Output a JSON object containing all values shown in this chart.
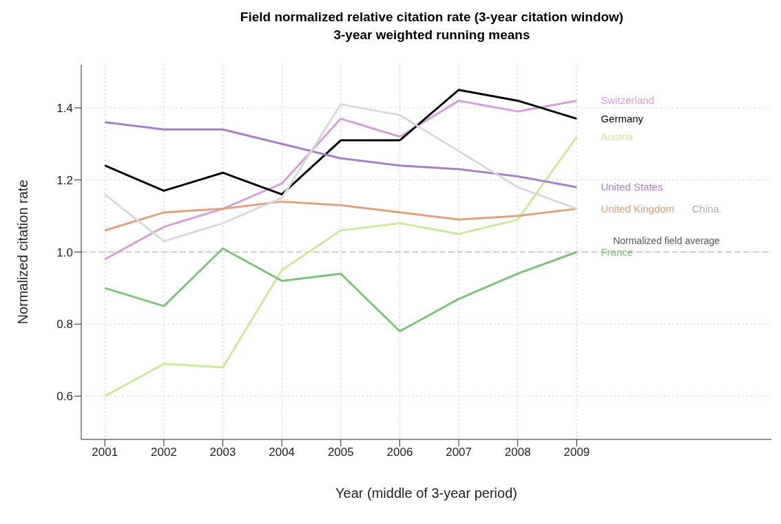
{
  "chart_data": {
    "type": "line",
    "title": "Field normalized relative citation rate (3-year citation window)",
    "subtitle": "3-year weighted running means",
    "xlabel": "Year (middle of 3-year period)",
    "ylabel": "Normalized citation rate",
    "x": [
      2001,
      2002,
      2003,
      2004,
      2005,
      2006,
      2007,
      2008,
      2009
    ],
    "series": [
      {
        "name": "Switzerland",
        "color": "#d4a0d8",
        "values": [
          0.98,
          1.07,
          1.12,
          1.19,
          1.37,
          1.32,
          1.42,
          1.39,
          1.42
        ]
      },
      {
        "name": "Germany",
        "color": "#000000",
        "values": [
          1.24,
          1.17,
          1.22,
          1.16,
          1.31,
          1.31,
          1.45,
          1.42,
          1.37
        ]
      },
      {
        "name": "Austria",
        "color": "#cde99a",
        "values": [
          0.6,
          0.69,
          0.68,
          0.95,
          1.06,
          1.08,
          1.05,
          1.09,
          1.32
        ]
      },
      {
        "name": "United States",
        "color": "#a57fc7",
        "values": [
          1.36,
          1.34,
          1.34,
          1.3,
          1.26,
          1.24,
          1.23,
          1.21,
          1.18
        ]
      },
      {
        "name": "United Kingdom",
        "color": "#e3a07a",
        "values": [
          1.06,
          1.11,
          1.12,
          1.14,
          1.13,
          1.11,
          1.09,
          1.1,
          1.12
        ]
      },
      {
        "name": "China",
        "color": "#d9d9d9",
        "values": [
          1.16,
          1.03,
          1.08,
          1.15,
          1.41,
          1.38,
          1.28,
          1.18,
          1.12
        ]
      },
      {
        "name": "France",
        "color": "#7cc47c",
        "values": [
          0.9,
          0.85,
          1.01,
          0.92,
          0.94,
          0.78,
          0.87,
          0.94,
          1.0
        ]
      }
    ],
    "xlim": [
      2000.6,
      2012.3
    ],
    "xticks": [
      2001,
      2002,
      2003,
      2004,
      2005,
      2006,
      2007,
      2008,
      2009
    ],
    "ylim": [
      0.48,
      1.52
    ],
    "yticks": [
      {
        "value": 0.6,
        "label": "0.6"
      },
      {
        "value": 0.8,
        "label": "0.8"
      },
      {
        "value": 1,
        "label": "1.0"
      },
      {
        "value": 1.2,
        "label": "1.2"
      },
      {
        "value": 1.4,
        "label": "1.4"
      }
    ],
    "ref_lines": [
      {
        "axis": "y",
        "value": 1,
        "label": "Normalized field average",
        "color": "#bbbbbb",
        "line_style": "dashed"
      }
    ],
    "grid": true,
    "marker": "none",
    "line_style": "solid"
  }
}
